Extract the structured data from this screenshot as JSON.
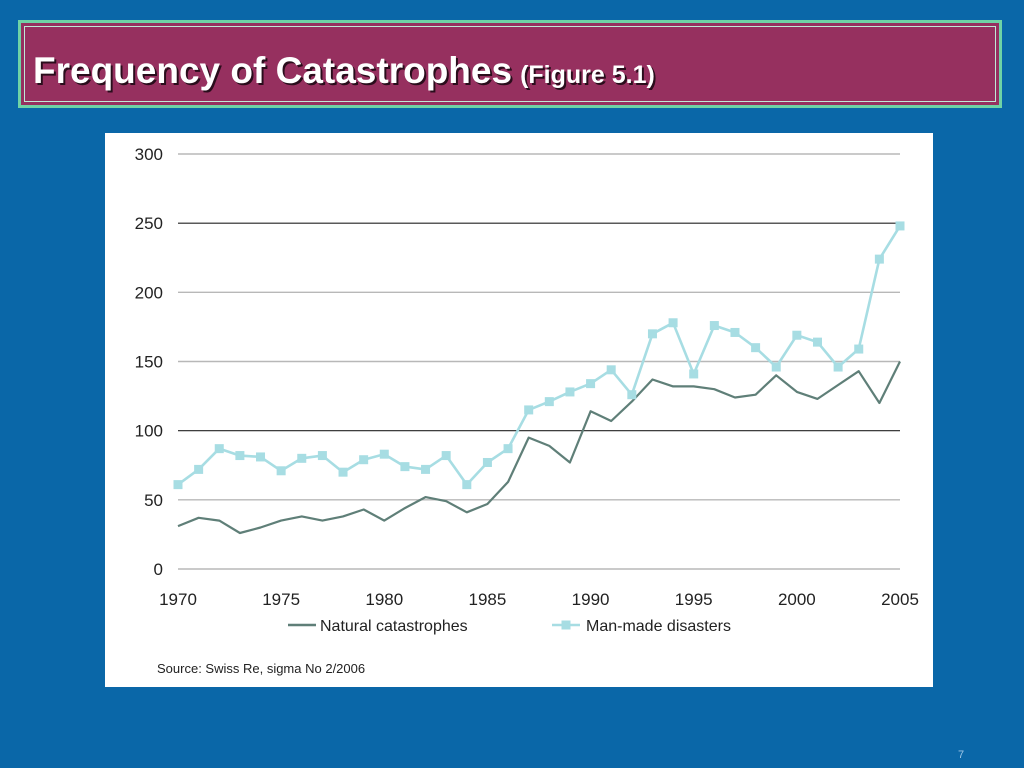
{
  "slide": {
    "title": "Frequency of Catastrophes",
    "subtitle": "(Figure 5.1)",
    "page_number": "7",
    "background_color": "#0a67a8",
    "title_bar_color": "#96305f",
    "title_border_color": "#6fd3a6"
  },
  "chart_data": {
    "type": "line",
    "title": "",
    "xlabel": "",
    "ylabel": "",
    "x": [
      1970,
      1971,
      1972,
      1973,
      1974,
      1975,
      1976,
      1977,
      1978,
      1979,
      1980,
      1981,
      1982,
      1983,
      1984,
      1985,
      1986,
      1987,
      1988,
      1989,
      1990,
      1991,
      1992,
      1993,
      1994,
      1995,
      1996,
      1997,
      1998,
      1999,
      2000,
      2001,
      2002,
      2003,
      2004,
      2005
    ],
    "xlim": [
      1970,
      2005
    ],
    "ylim": [
      0,
      300
    ],
    "x_ticks": [
      "1970",
      "1975",
      "1980",
      "1985",
      "1990",
      "1995",
      "2000",
      "2005"
    ],
    "y_ticks": [
      "300",
      "250",
      "200",
      "150",
      "100",
      "50",
      "0"
    ],
    "grid": true,
    "legend_position": "bottom",
    "series": [
      {
        "name": "Natural catastrophes",
        "color": "#5f7f78",
        "marker": "none",
        "values": [
          31,
          37,
          35,
          26,
          30,
          35,
          38,
          35,
          38,
          43,
          35,
          44,
          52,
          49,
          41,
          47,
          63,
          95,
          89,
          77,
          114,
          107,
          121,
          137,
          132,
          132,
          130,
          124,
          126,
          140,
          128,
          123,
          133,
          143,
          120,
          150
        ]
      },
      {
        "name": "Man-made disasters",
        "color": "#a7dde3",
        "marker": "square",
        "values": [
          61,
          72,
          87,
          82,
          81,
          71,
          80,
          82,
          70,
          79,
          83,
          74,
          72,
          82,
          61,
          77,
          87,
          115,
          121,
          128,
          134,
          144,
          126,
          170,
          178,
          141,
          176,
          171,
          160,
          146,
          169,
          164,
          146,
          159,
          224,
          248
        ]
      }
    ],
    "source": "Source: Swiss Re, sigma No 2/2006"
  }
}
